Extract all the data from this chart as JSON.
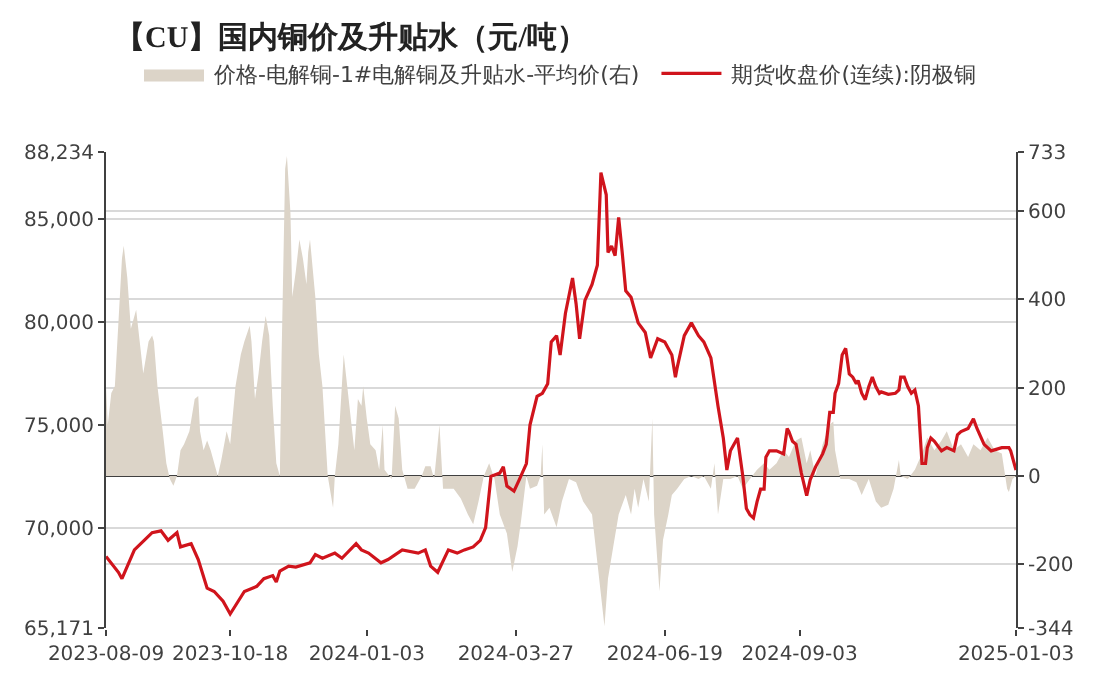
{
  "chart_data": {
    "type": "line",
    "title": "【CU】国内铜价及升贴水（元/吨）",
    "xlim": [
      "2023-08-09",
      "2025-01-03"
    ],
    "xticks": [
      "2023-08-09",
      "2023-10-18",
      "2024-01-03",
      "2024-03-27",
      "2024-06-19",
      "2024-09-03",
      "2025-01-03"
    ],
    "ylim": [
      65171,
      88234
    ],
    "yticks": [
      {
        "value": 65171,
        "label": "65,171"
      },
      {
        "value": 70000,
        "label": "70,000"
      },
      {
        "value": 75000,
        "label": "75,000"
      },
      {
        "value": 80000,
        "label": "80,000"
      },
      {
        "value": 85000,
        "label": "85,000"
      },
      {
        "value": 88234,
        "label": "88,234"
      }
    ],
    "y2lim": [
      -344,
      733
    ],
    "y2ticks": [
      -344,
      -200,
      0,
      200,
      400,
      600,
      733
    ],
    "grid": "y",
    "legend": "top",
    "series": [
      {
        "name": "价格-电解铜-1#电解铜及升贴水-平均价(右)",
        "type": "area",
        "axis": "y2",
        "color": "#dcd4c8",
        "x": [
          "2023-08-09",
          "2023-08-10",
          "2023-08-12",
          "2023-08-14",
          "2023-08-16",
          "2023-08-18",
          "2023-08-19",
          "2023-08-21",
          "2023-08-23",
          "2023-08-24",
          "2023-08-26",
          "2023-08-28",
          "2023-08-30",
          "2023-09-02",
          "2023-09-04",
          "2023-09-05",
          "2023-09-07",
          "2023-09-10",
          "2023-09-12",
          "2023-09-14",
          "2023-09-16",
          "2023-09-18",
          "2023-09-20",
          "2023-09-22",
          "2023-09-25",
          "2023-09-28",
          "2023-09-30",
          "2023-10-01",
          "2023-10-03",
          "2023-10-05",
          "2023-10-07",
          "2023-10-11",
          "2023-10-13",
          "2023-10-16",
          "2023-10-18",
          "2023-10-21",
          "2023-10-24",
          "2023-10-26",
          "2023-10-29",
          "2023-10-30",
          "2023-11-01",
          "2023-11-03",
          "2023-11-05",
          "2023-11-07",
          "2023-11-09",
          "2023-11-11",
          "2023-11-13",
          "2023-11-15",
          "2023-11-16",
          "2023-11-18",
          "2023-11-19",
          "2023-11-21",
          "2023-11-22",
          "2023-11-24",
          "2023-11-26",
          "2023-11-28",
          "2023-11-30",
          "2023-12-01",
          "2023-12-02",
          "2023-12-05",
          "2023-12-07",
          "2023-12-09",
          "2023-12-12",
          "2023-12-15",
          "2023-12-16",
          "2023-12-18",
          "2023-12-21",
          "2023-12-23",
          "2023-12-25",
          "2023-12-27",
          "2023-12-29",
          "2023-12-31",
          "2024-01-01",
          "2024-01-03",
          "2024-01-05",
          "2024-01-08",
          "2024-01-10",
          "2024-01-12",
          "2024-01-13",
          "2024-01-17",
          "2024-01-19",
          "2024-01-21",
          "2024-01-23",
          "2024-01-26",
          "2024-01-30",
          "2024-02-03",
          "2024-02-05",
          "2024-02-08",
          "2024-02-10",
          "2024-02-13",
          "2024-02-15",
          "2024-02-18",
          "2024-02-21",
          "2024-02-25",
          "2024-02-29",
          "2024-03-03",
          "2024-03-06",
          "2024-03-09",
          "2024-03-12",
          "2024-03-15",
          "2024-03-18",
          "2024-03-22",
          "2024-03-25",
          "2024-03-28",
          "2024-03-30",
          "2024-04-02",
          "2024-04-04",
          "2024-04-08",
          "2024-04-10",
          "2024-04-11",
          "2024-04-12",
          "2024-04-15",
          "2024-04-19",
          "2024-04-22",
          "2024-04-26",
          "2024-04-30",
          "2024-05-04",
          "2024-05-09",
          "2024-05-13",
          "2024-05-16",
          "2024-05-18",
          "2024-05-21",
          "2024-05-24",
          "2024-05-28",
          "2024-05-31",
          "2024-06-02",
          "2024-06-04",
          "2024-06-07",
          "2024-06-10",
          "2024-06-12",
          "2024-06-13",
          "2024-06-16",
          "2024-06-18",
          "2024-06-21",
          "2024-06-23",
          "2024-06-26",
          "2024-06-30",
          "2024-07-04",
          "2024-07-08",
          "2024-07-11",
          "2024-07-15",
          "2024-07-17",
          "2024-07-19",
          "2024-07-22",
          "2024-07-26",
          "2024-07-30",
          "2024-08-02",
          "2024-08-06",
          "2024-08-10",
          "2024-08-14",
          "2024-08-17",
          "2024-08-21",
          "2024-08-25",
          "2024-08-28",
          "2024-09-01",
          "2024-09-04",
          "2024-09-07",
          "2024-09-09",
          "2024-09-12",
          "2024-09-16",
          "2024-09-20",
          "2024-09-22",
          "2024-09-23",
          "2024-09-26",
          "2024-10-01",
          "2024-10-05",
          "2024-10-08",
          "2024-10-12",
          "2024-10-16",
          "2024-10-19",
          "2024-10-23",
          "2024-10-26",
          "2024-10-29",
          "2024-10-30",
          "2024-11-03",
          "2024-11-07",
          "2024-11-11",
          "2024-11-14",
          "2024-11-18",
          "2024-11-22",
          "2024-11-25",
          "2024-11-29",
          "2024-12-03",
          "2024-12-07",
          "2024-12-10",
          "2024-12-14",
          "2024-12-18",
          "2024-12-22",
          "2024-12-26",
          "2024-12-29",
          "2024-12-30",
          "2025-01-01",
          "2025-01-03"
        ],
        "values": [
          203,
          116,
          188,
          203,
          347,
          492,
          521,
          449,
          333,
          347,
          376,
          304,
          232,
          304,
          318,
          304,
          203,
          101,
          29,
          -7,
          -22,
          0,
          58,
          72,
          101,
          174,
          181,
          101,
          58,
          80,
          58,
          0,
          36,
          101,
          72,
          203,
          275,
          304,
          340,
          304,
          174,
          232,
          304,
          362,
          318,
          159,
          29,
          0,
          275,
          695,
          724,
          594,
          405,
          463,
          535,
          492,
          434,
          507,
          535,
          405,
          275,
          203,
          0,
          -72,
          0,
          72,
          275,
          203,
          130,
          58,
          174,
          159,
          203,
          130,
          72,
          58,
          14,
          116,
          14,
          -7,
          159,
          130,
          14,
          -29,
          -29,
          0,
          22,
          22,
          -7,
          116,
          -29,
          -29,
          -29,
          -51,
          -87,
          -109,
          -58,
          0,
          29,
          -7,
          -87,
          -130,
          -217,
          -159,
          -101,
          0,
          -29,
          -22,
          0,
          72,
          -87,
          -72,
          -116,
          -58,
          -7,
          -14,
          -58,
          -87,
          -232,
          -340,
          -232,
          -159,
          -87,
          -43,
          -87,
          -29,
          -72,
          -7,
          -58,
          130,
          -87,
          -261,
          -145,
          -87,
          -43,
          -29,
          -7,
          0,
          -7,
          0,
          -29,
          29,
          -87,
          -7,
          -7,
          0,
          -29,
          -7,
          14,
          29,
          14,
          29,
          58,
          43,
          80,
          87,
          29,
          58,
          0,
          72,
          116,
          123,
          58,
          -7,
          -7,
          -14,
          -43,
          -7,
          -58,
          -72,
          -65,
          -29,
          36,
          0,
          -7,
          14,
          51,
          87,
          58,
          80,
          101,
          58,
          72,
          43,
          72,
          58,
          87,
          58,
          51,
          -29,
          -36,
          -7,
          0
        ]
      },
      {
        "name": "期货收盘价(连续):阴极铜",
        "color": "#d0141c",
        "x": [
          "2023-08-09",
          "2023-08-16",
          "2023-08-18",
          "2023-08-25",
          "2023-09-04",
          "2023-09-09",
          "2023-09-13",
          "2023-09-18",
          "2023-09-20",
          "2023-09-26",
          "2023-09-30",
          "2023-10-05",
          "2023-10-09",
          "2023-10-14",
          "2023-10-18",
          "2023-10-26",
          "2023-11-02",
          "2023-11-06",
          "2023-11-11",
          "2023-11-13",
          "2023-11-15",
          "2023-11-20",
          "2023-11-24",
          "2023-12-02",
          "2023-12-05",
          "2023-12-09",
          "2023-12-16",
          "2023-12-20",
          "2023-12-28",
          "2023-12-31",
          "2024-01-04",
          "2024-01-11",
          "2024-01-15",
          "2024-01-23",
          "2024-02-01",
          "2024-02-05",
          "2024-02-08",
          "2024-02-12",
          "2024-02-18",
          "2024-02-23",
          "2024-02-27",
          "2024-03-03",
          "2024-03-07",
          "2024-03-10",
          "2024-03-13",
          "2024-03-18",
          "2024-03-20",
          "2024-03-22",
          "2024-03-26",
          "2024-03-29",
          "2024-04-02",
          "2024-04-04",
          "2024-04-08",
          "2024-04-11",
          "2024-04-14",
          "2024-04-16",
          "2024-04-19",
          "2024-04-21",
          "2024-04-24",
          "2024-04-28",
          "2024-04-30",
          "2024-05-02",
          "2024-05-05",
          "2024-05-09",
          "2024-05-12",
          "2024-05-14",
          "2024-05-17",
          "2024-05-18",
          "2024-05-20",
          "2024-05-22",
          "2024-05-24",
          "2024-05-26",
          "2024-05-28",
          "2024-05-31",
          "2024-06-04",
          "2024-06-08",
          "2024-06-11",
          "2024-06-15",
          "2024-06-19",
          "2024-06-23",
          "2024-06-25",
          "2024-06-26",
          "2024-06-30",
          "2024-07-04",
          "2024-07-08",
          "2024-07-11",
          "2024-07-15",
          "2024-07-19",
          "2024-07-22",
          "2024-07-24",
          "2024-07-26",
          "2024-07-30",
          "2024-08-02",
          "2024-08-04",
          "2024-08-06",
          "2024-08-08",
          "2024-08-10",
          "2024-08-12",
          "2024-08-14",
          "2024-08-15",
          "2024-08-17",
          "2024-08-21",
          "2024-08-25",
          "2024-08-27",
          "2024-08-28",
          "2024-08-30",
          "2024-09-01",
          "2024-09-04",
          "2024-09-07",
          "2024-09-09",
          "2024-09-12",
          "2024-09-16",
          "2024-09-18",
          "2024-09-20",
          "2024-09-22",
          "2024-09-23",
          "2024-09-25",
          "2024-09-27",
          "2024-09-29",
          "2024-10-01",
          "2024-10-03",
          "2024-10-05",
          "2024-10-06",
          "2024-10-08",
          "2024-10-10",
          "2024-10-12",
          "2024-10-14",
          "2024-10-16",
          "2024-10-18",
          "2024-10-19",
          "2024-10-23",
          "2024-10-27",
          "2024-10-29",
          "2024-10-30",
          "2024-11-01",
          "2024-11-03",
          "2024-11-05",
          "2024-11-07",
          "2024-11-09",
          "2024-11-11",
          "2024-11-13",
          "2024-11-14",
          "2024-11-16",
          "2024-11-18",
          "2024-11-22",
          "2024-11-25",
          "2024-11-29",
          "2024-12-01",
          "2024-12-03",
          "2024-12-07",
          "2024-12-10",
          "2024-12-12",
          "2024-12-16",
          "2024-12-20",
          "2024-12-26",
          "2024-12-30",
          "2024-12-31",
          "2025-01-03"
        ],
        "values": [
          68640,
          67870,
          67560,
          68955,
          69790,
          69880,
          69420,
          69790,
          69100,
          69260,
          68490,
          67100,
          66940,
          66470,
          65850,
          66940,
          67190,
          67560,
          67710,
          67400,
          67930,
          68170,
          68120,
          68330,
          68730,
          68550,
          68800,
          68550,
          69260,
          68955,
          68800,
          68330,
          68490,
          68955,
          68800,
          68955,
          68170,
          67870,
          68955,
          68800,
          68955,
          69100,
          69420,
          70030,
          72520,
          72675,
          72980,
          72050,
          71800,
          72360,
          73140,
          75000,
          76395,
          76545,
          77010,
          79030,
          79335,
          78400,
          80420,
          82125,
          80885,
          79185,
          81045,
          81815,
          82745,
          87240,
          86160,
          83370,
          83675,
          83210,
          85070,
          83370,
          81510,
          81195,
          79955,
          79490,
          78255,
          79185,
          79030,
          78400,
          77325,
          77790,
          79335,
          79955,
          79335,
          79030,
          78255,
          75930,
          74375,
          72825,
          73755,
          74375,
          72520,
          70965,
          70655,
          70500,
          71280,
          71895,
          71895,
          73445,
          73755,
          73755,
          73605,
          74840,
          74685,
          74220,
          74070,
          72675,
          71585,
          72360,
          72980,
          73605,
          74070,
          75615,
          75615,
          76545,
          77010,
          78400,
          78720,
          77475,
          77325,
          77010,
          77165,
          76545,
          76235,
          76860,
          77325,
          76860,
          76545,
          76610,
          76490,
          76545,
          76700,
          77325,
          77325,
          76860,
          76545,
          76700,
          75930,
          73140,
          73140,
          73910,
          74375,
          74220,
          73755,
          73910,
          73755,
          74535,
          74685,
          74840,
          75305,
          74840,
          74070,
          73755,
          73910,
          73910,
          73755,
          72825
        ]
      }
    ]
  }
}
